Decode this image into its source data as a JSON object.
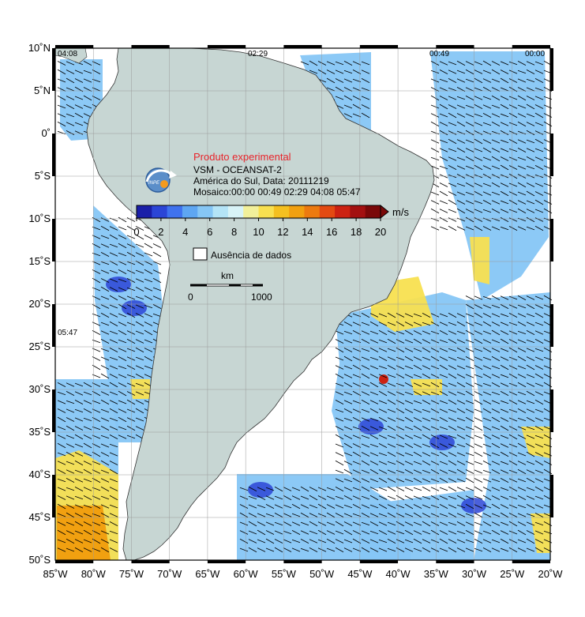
{
  "legend": {
    "experimental": "Produto experimental",
    "product": "VSM - OCEANSAT-2",
    "region_date": "América do Sul, Data: 20111219",
    "mosaic": "Mosaico:00:00 00:49 02:29 04:08 05:47",
    "logo_text": "INPE"
  },
  "colorbar": {
    "unit": "m/s",
    "ticks": [
      "0",
      "2",
      "4",
      "6",
      "8",
      "10",
      "12",
      "14",
      "16",
      "18",
      "20"
    ],
    "colors": [
      "#1a1fa8",
      "#2b45d6",
      "#3f72ee",
      "#5ea6f2",
      "#86c6f5",
      "#b4e4f7",
      "#d8f3f7",
      "#f2f09a",
      "#f8e050",
      "#f4c020",
      "#f1a010",
      "#ec7a10",
      "#e34a12",
      "#cc2212",
      "#a31010",
      "#7a0808"
    ]
  },
  "no_data": {
    "label": "Ausência de dados"
  },
  "scale": {
    "unit": "km",
    "min": "0",
    "max": "1000"
  },
  "pass_times": [
    "04:08",
    "02:29",
    "00:49",
    "00:00",
    "05:47"
  ],
  "axes": {
    "lat_labels": [
      "10˚N",
      "5˚N",
      "0˚",
      "5˚S",
      "10˚S",
      "15˚S",
      "20˚S",
      "25˚S",
      "30˚S",
      "35˚S",
      "40˚S",
      "45˚S",
      "50˚S"
    ],
    "lon_labels": [
      "85˚W",
      "80˚W",
      "75˚W",
      "70˚W",
      "65˚W",
      "60˚W",
      "55˚W",
      "50˚W",
      "45˚W",
      "40˚W",
      "35˚W",
      "30˚W",
      "25˚W",
      "20˚W"
    ],
    "lat_range": [
      -50,
      10
    ],
    "lon_range": [
      -85,
      -20
    ],
    "grid": true
  },
  "colors": {
    "land": "#c7d6d3",
    "ocean_nodata": "#ffffff",
    "low_wind": "#86c6f5",
    "mid_wind": "#b4e4f7",
    "high_wind": "#f8e050",
    "very_high_wind": "#f1a010",
    "extreme_wind": "#cc2212",
    "frame_black": "#000000"
  }
}
